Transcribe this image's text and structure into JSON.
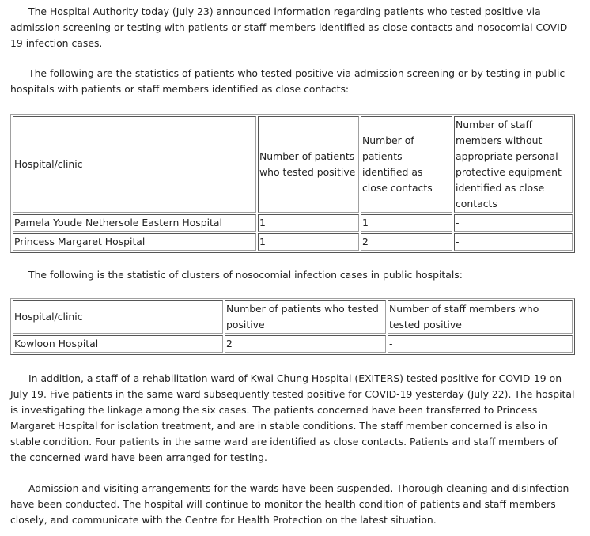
{
  "paragraphs": [
    "The Hospital Authority today (July 23) announced information regarding patients who tested positive via admission screening or testing with patients or staff members identified as close contacts and nosocomial COVID-19 infection cases.",
    "The following are the statistics of patients who tested positive via admission screening or by testing in public hospitals with patients or staff members identified as close contacts:",
    "The following is the statistic of clusters of nosocomial infection cases in public hospitals:",
    "In addition, a staff of a rehabilitation ward of Kwai Chung Hospital (EXITERS) tested positive for COVID-19 on July 19. Five patients in the same ward subsequently tested positive for COVID-19 yesterday (July 22). The hospital is investigating the linkage among the six cases. The patients concerned have been transferred to Princess Margaret Hospital for isolation treatment, and are in stable conditions. The staff member concerned is also in stable condition. Four patients in the same ward are identified as close contacts. Patients and staff members of the concerned ward have been arranged for testing.",
    "Admission and visiting arrangements for the wards have been suspended. Thorough cleaning and disinfection have been conducted. The hospital will continue to monitor the health condition of patients and staff members closely, and communicate with the Centre for Health Protection on the latest situation."
  ],
  "table1": {
    "headers": [
      "Hospital/clinic",
      "Number of patients who tested positive",
      "Number of patients identified as close contacts",
      "Number of staff members without appropriate personal protective equipment identified as close contacts"
    ],
    "rows": [
      [
        "Pamela Youde Nethersole Eastern Hospital",
        "1",
        "1",
        "-"
      ],
      [
        "Princess Margaret Hospital",
        "1",
        "2",
        "-"
      ]
    ]
  },
  "table2": {
    "headers": [
      "Hospital/clinic",
      "Number of patients who tested positive",
      "Number of staff members who tested positive"
    ],
    "rows": [
      [
        "Kowloon Hospital",
        "2",
        "-"
      ]
    ]
  }
}
